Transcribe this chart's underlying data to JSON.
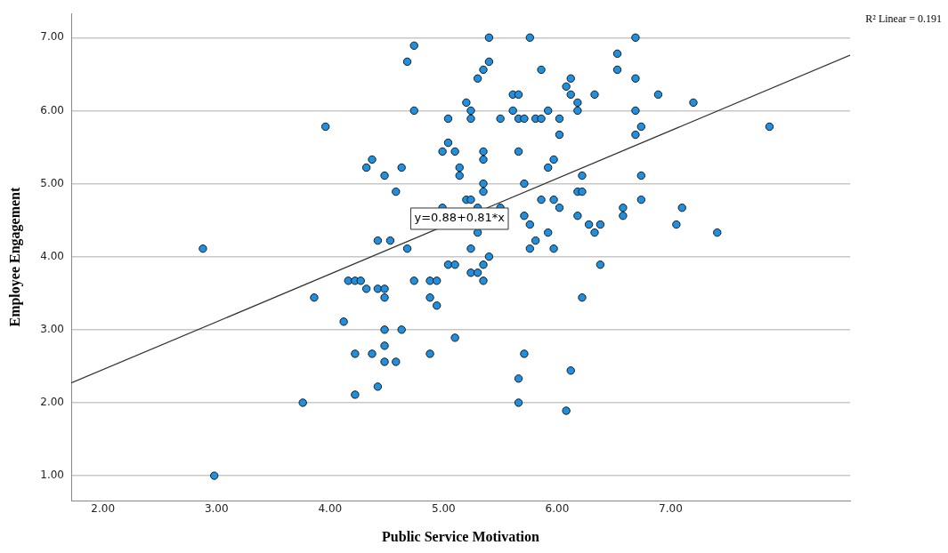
{
  "chart_data": {
    "type": "scatter",
    "xlabel": "Public Service Motivation",
    "ylabel": "Employee Engagement",
    "annotations": [
      "R² Linear = 0.191",
      {
        "text": "y=0.88+0.81*x",
        "x": 5.14,
        "y": 4.52
      }
    ],
    "xlim": [
      1.72,
      8.58
    ],
    "ylim": [
      0.66,
      7.33
    ],
    "xticks": [
      {
        "value": 2,
        "label": "2.00"
      },
      {
        "value": 3,
        "label": "3.00"
      },
      {
        "value": 4,
        "label": "4.00"
      },
      {
        "value": 5,
        "label": "5.00"
      },
      {
        "value": 6,
        "label": "6.00"
      },
      {
        "value": 7,
        "label": "7.00"
      }
    ],
    "yticks": [
      {
        "value": 1,
        "label": "1.00"
      },
      {
        "value": 2,
        "label": "2.00"
      },
      {
        "value": 3,
        "label": "3.00"
      },
      {
        "value": 4,
        "label": "4.00"
      },
      {
        "value": 5,
        "label": "5.00"
      },
      {
        "value": 6,
        "label": "6.00"
      },
      {
        "value": 7,
        "label": "7.00"
      }
    ],
    "grid": "y",
    "legend": false,
    "marker": "circle",
    "series": [
      {
        "type": "scatter",
        "color": "#1f8fe0",
        "x": [
          2.88,
          2.98,
          3.76,
          3.86,
          3.96,
          4.12,
          4.16,
          4.22,
          4.27,
          4.32,
          4.42,
          4.48,
          4.48,
          4.48,
          4.63,
          4.48,
          4.22,
          4.37,
          4.88,
          4.48,
          4.58,
          5.1,
          4.42,
          4.22,
          4.74,
          4.88,
          4.94,
          4.88,
          4.94,
          5.04,
          5.1,
          5.24,
          5.3,
          5.35,
          5.4,
          5.35,
          4.74,
          4.68,
          4.74,
          5.04,
          5.2,
          5.24,
          5.24,
          5.4,
          5.4,
          5.35,
          5.3,
          5.04,
          4.99,
          5.1,
          5.35,
          5.35,
          4.37,
          4.32,
          4.63,
          5.14,
          5.14,
          4.48,
          5.35,
          5.35,
          4.58,
          5.2,
          5.24,
          4.99,
          5.3,
          5.3,
          4.42,
          4.53,
          4.68,
          5.24,
          5.76,
          6.69,
          6.53,
          6.53,
          5.86,
          6.12,
          6.08,
          6.12,
          6.18,
          6.18,
          6.33,
          6.69,
          6.89,
          7.2,
          7.87,
          5.61,
          5.66,
          5.61,
          5.5,
          5.66,
          5.71,
          5.81,
          5.86,
          5.92,
          6.02,
          6.02,
          6.69,
          6.74,
          6.69,
          5.66,
          5.97,
          5.92,
          6.22,
          6.74,
          5.71,
          6.18,
          6.22,
          5.86,
          5.97,
          6.74,
          6.02,
          6.58,
          7.1,
          5.71,
          6.18,
          6.58,
          5.76,
          6.28,
          6.38,
          7.05,
          5.92,
          6.33,
          7.41,
          5.81,
          5.76,
          5.97,
          6.38,
          5.5,
          6.22,
          5.71,
          6.12,
          5.66,
          5.66,
          6.08
        ],
        "values": [
          4.11,
          1.0,
          2.0,
          3.44,
          5.78,
          3.11,
          3.67,
          3.67,
          3.67,
          3.56,
          3.56,
          3.56,
          3.44,
          3.0,
          3.0,
          2.78,
          2.67,
          2.67,
          2.67,
          2.56,
          2.56,
          2.89,
          2.22,
          2.11,
          3.67,
          3.67,
          3.67,
          3.44,
          3.33,
          3.89,
          3.89,
          3.78,
          3.78,
          3.89,
          4.0,
          3.67,
          6.89,
          6.67,
          6.0,
          5.89,
          6.11,
          6.0,
          5.89,
          7.0,
          6.67,
          6.56,
          6.44,
          5.56,
          5.44,
          5.44,
          5.44,
          5.33,
          5.33,
          5.22,
          5.22,
          5.22,
          5.11,
          5.11,
          5.0,
          4.89,
          4.89,
          4.78,
          4.78,
          4.67,
          4.67,
          4.33,
          4.22,
          4.22,
          4.11,
          4.11,
          7.0,
          7.0,
          6.78,
          6.56,
          6.56,
          6.44,
          6.33,
          6.22,
          6.11,
          6.0,
          6.22,
          6.44,
          6.22,
          6.11,
          5.78,
          6.22,
          6.22,
          6.0,
          5.89,
          5.89,
          5.89,
          5.89,
          5.89,
          6.0,
          5.89,
          5.67,
          6.0,
          5.78,
          5.67,
          5.44,
          5.33,
          5.22,
          5.11,
          5.11,
          5.0,
          4.89,
          4.89,
          4.78,
          4.78,
          4.78,
          4.67,
          4.67,
          4.67,
          4.56,
          4.56,
          4.56,
          4.44,
          4.44,
          4.44,
          4.44,
          4.33,
          4.33,
          4.33,
          4.22,
          4.11,
          4.11,
          3.89,
          4.67,
          3.44,
          2.67,
          2.44,
          2.33,
          2.0,
          1.89
        ]
      },
      {
        "type": "line",
        "color": "#333333",
        "marker": "none",
        "x": [
          1.72,
          8.58
        ],
        "values": [
          2.27,
          6.76
        ]
      }
    ]
  }
}
